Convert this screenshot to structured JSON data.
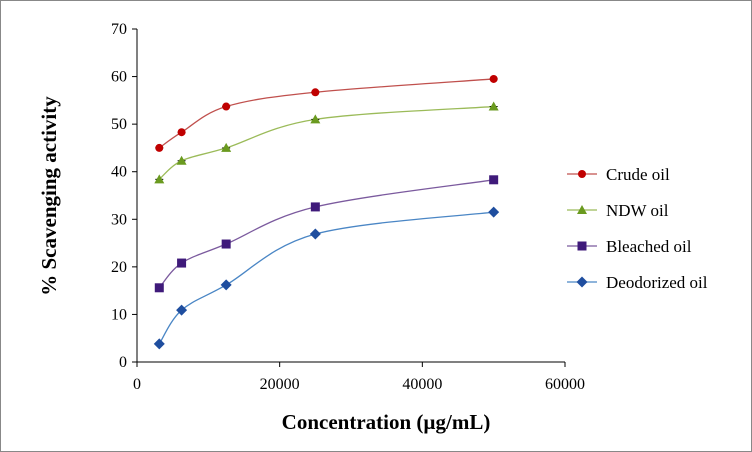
{
  "chart_data": {
    "type": "line",
    "title": "",
    "xlabel": "Concentration (µg/mL)",
    "ylabel": "% Scavenging activity",
    "xlim": [
      0,
      60000
    ],
    "ylim": [
      0,
      70
    ],
    "xticks": [
      0,
      20000,
      40000,
      60000
    ],
    "yticks": [
      0,
      10,
      20,
      30,
      40,
      50,
      60,
      70
    ],
    "grid": false,
    "legend_position": "right",
    "x": [
      3125,
      6250,
      12500,
      25000,
      50000
    ],
    "series": [
      {
        "name": "Crude oil",
        "values": [
          45.0,
          48.3,
          53.7,
          56.7,
          59.5
        ],
        "color": "#c00000",
        "line_color": "#c0504d",
        "marker": "circle"
      },
      {
        "name": "NDW oil",
        "values": [
          38.4,
          42.3,
          45.0,
          51.0,
          53.7
        ],
        "color": "#6a9a1f",
        "line_color": "#9bbb59",
        "marker": "triangle"
      },
      {
        "name": "Bleached oil",
        "values": [
          15.6,
          20.8,
          24.8,
          32.6,
          38.3
        ],
        "color": "#3f1a7a",
        "line_color": "#7b5a9e",
        "marker": "square"
      },
      {
        "name": "Deodorized oil",
        "values": [
          3.8,
          10.9,
          16.2,
          26.9,
          31.5
        ],
        "color": "#1f4e9f",
        "line_color": "#4a86c5",
        "marker": "diamond"
      }
    ]
  }
}
